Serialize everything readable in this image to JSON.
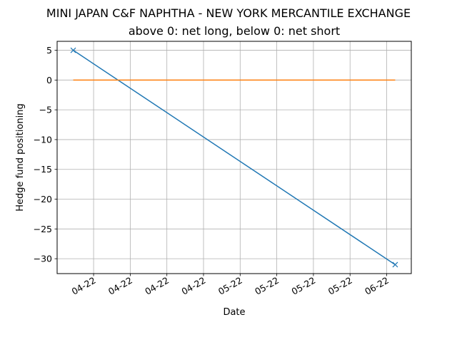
{
  "chart_data": {
    "type": "line",
    "title": "MINI JAPAN C&F NAPHTHA - NEW YORK MERCANTILE EXCHANGE",
    "subtitle": "above 0: net long, below 0: net short",
    "xlabel": "Date",
    "ylabel": "Hedge fund positioning",
    "x_tick_labels": [
      "04-22",
      "04-22",
      "04-22",
      "04-22",
      "05-22",
      "05-22",
      "05-22",
      "05-22",
      "06-22"
    ],
    "y_ticks": [
      5,
      0,
      -5,
      -10,
      -15,
      -20,
      -25,
      -30
    ],
    "y_tick_labels": [
      "5",
      "0",
      "−5",
      "−10",
      "−15",
      "−20",
      "−25",
      "−30"
    ],
    "ylim": [
      -32.5,
      6.5
    ],
    "grid": true,
    "series": [
      {
        "color": "#1f77b4",
        "marker": "x",
        "x": [
          "2022-04-12",
          "2022-06-21"
        ],
        "values": [
          5,
          -31
        ]
      },
      {
        "color": "#ff7f0e",
        "marker": "none",
        "x": [
          "2022-04-12",
          "2022-06-21"
        ],
        "values": [
          0,
          0
        ]
      }
    ]
  }
}
